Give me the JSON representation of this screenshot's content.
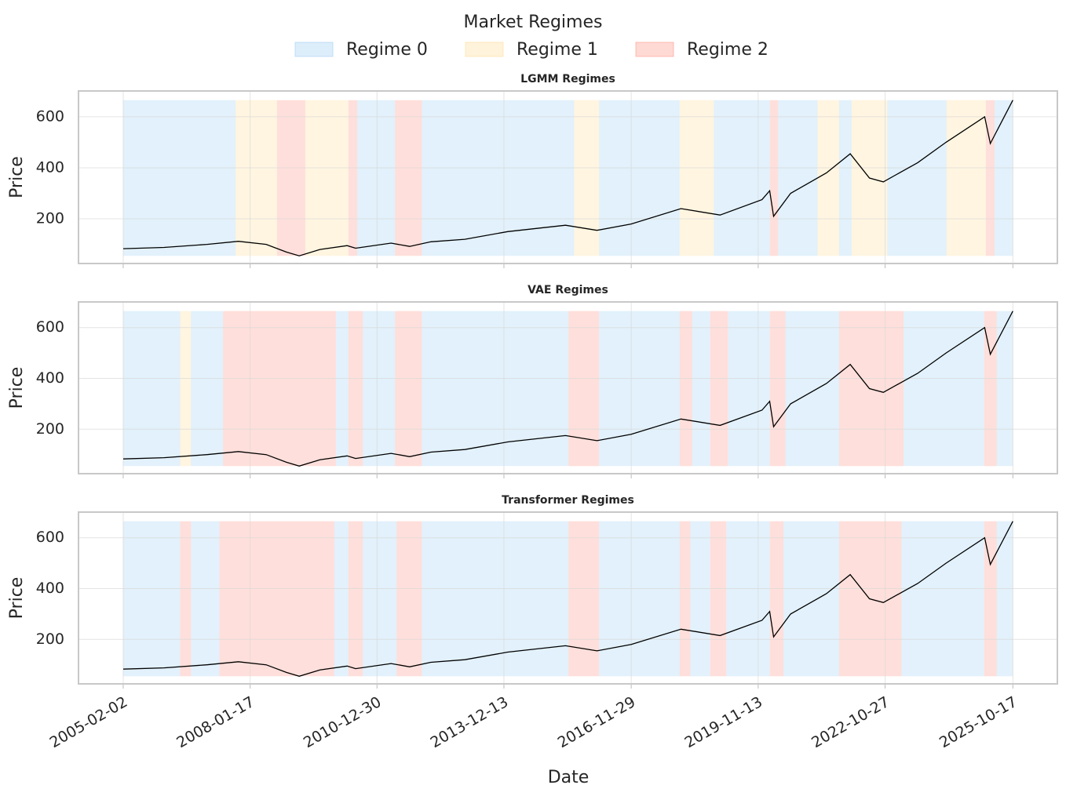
{
  "title": "Market Regimes",
  "legend": [
    {
      "name": "Regime 0",
      "color": "#9fcff3"
    },
    {
      "name": "Regime 1",
      "color": "#ffde99"
    },
    {
      "name": "Regime 2",
      "color": "#ff9688"
    }
  ],
  "x_axis": {
    "label": "Date",
    "xlim": [
      "2004-01-19",
      "2026-10-30"
    ],
    "xticks": [
      "2005-02-02",
      "2008-01-17",
      "2010-12-30",
      "2013-12-13",
      "2016-11-29",
      "2019-11-13",
      "2022-10-27",
      "2025-10-17"
    ]
  },
  "price": {
    "x": [
      "2005-02-02",
      "2006-01-15",
      "2007-01-15",
      "2007-10-09",
      "2008-06-01",
      "2008-11-20",
      "2009-03-09",
      "2009-09-01",
      "2010-04-20",
      "2010-07-01",
      "2011-04-29",
      "2011-10-03",
      "2012-04-01",
      "2013-01-15",
      "2014-01-15",
      "2015-05-20",
      "2016-02-11",
      "2016-11-29",
      "2018-01-26",
      "2018-12-24",
      "2019-12-15",
      "2020-02-19",
      "2020-03-23",
      "2020-08-15",
      "2021-06-15",
      "2022-01-03",
      "2022-06-16",
      "2022-10-12",
      "2023-07-31",
      "2024-03-28",
      "2025-02-19",
      "2025-04-08",
      "2025-10-17"
    ],
    "values": [
      83,
      88,
      100,
      112,
      100,
      70,
      55,
      80,
      95,
      85,
      105,
      92,
      110,
      120,
      150,
      175,
      155,
      180,
      240,
      215,
      275,
      310,
      210,
      300,
      380,
      455,
      360,
      345,
      420,
      500,
      600,
      495,
      665
    ]
  },
  "chart_data": [
    {
      "type": "line",
      "title": "LGMM Regimes",
      "y_label": "Price",
      "ylim": [
        25,
        701
      ],
      "yticks": [
        200,
        400,
        600
      ],
      "grid": true,
      "regime_spans": [
        {
          "start": "2005-02-02",
          "end": "2007-09-15",
          "regime": 0
        },
        {
          "start": "2007-09-15",
          "end": "2008-09-01",
          "regime": 1
        },
        {
          "start": "2008-09-01",
          "end": "2009-05-01",
          "regime": 2
        },
        {
          "start": "2009-05-01",
          "end": "2010-05-01",
          "regime": 1
        },
        {
          "start": "2010-05-01",
          "end": "2010-07-15",
          "regime": 2
        },
        {
          "start": "2010-07-15",
          "end": "2011-06-01",
          "regime": 0
        },
        {
          "start": "2011-06-01",
          "end": "2012-01-15",
          "regime": 2
        },
        {
          "start": "2012-01-15",
          "end": "2015-08-01",
          "regime": 0
        },
        {
          "start": "2015-08-01",
          "end": "2016-03-01",
          "regime": 1
        },
        {
          "start": "2016-03-01",
          "end": "2018-01-15",
          "regime": 0
        },
        {
          "start": "2018-01-15",
          "end": "2018-11-01",
          "regime": 1
        },
        {
          "start": "2018-11-01",
          "end": "2020-02-20",
          "regime": 0
        },
        {
          "start": "2020-02-20",
          "end": "2020-05-01",
          "regime": 2
        },
        {
          "start": "2020-05-01",
          "end": "2021-04-01",
          "regime": 0
        },
        {
          "start": "2021-04-01",
          "end": "2021-10-01",
          "regime": 1
        },
        {
          "start": "2021-10-01",
          "end": "2022-01-15",
          "regime": 0
        },
        {
          "start": "2022-01-15",
          "end": "2022-11-15",
          "regime": 1
        },
        {
          "start": "2022-11-15",
          "end": "2024-04-01",
          "regime": 0
        },
        {
          "start": "2024-04-01",
          "end": "2025-03-01",
          "regime": 1
        },
        {
          "start": "2025-03-01",
          "end": "2025-05-15",
          "regime": 2
        },
        {
          "start": "2025-05-15",
          "end": "2025-10-17",
          "regime": 0
        }
      ]
    },
    {
      "type": "line",
      "title": "VAE Regimes",
      "y_label": "Price",
      "ylim": [
        25,
        701
      ],
      "yticks": [
        200,
        400,
        600
      ],
      "grid": true,
      "regime_spans": [
        {
          "start": "2005-02-02",
          "end": "2006-06-01",
          "regime": 0
        },
        {
          "start": "2006-06-01",
          "end": "2006-09-01",
          "regime": 1
        },
        {
          "start": "2006-09-01",
          "end": "2007-06-01",
          "regime": 0
        },
        {
          "start": "2007-06-01",
          "end": "2010-01-15",
          "regime": 2
        },
        {
          "start": "2010-01-15",
          "end": "2010-05-01",
          "regime": 0
        },
        {
          "start": "2010-05-01",
          "end": "2010-09-01",
          "regime": 2
        },
        {
          "start": "2010-09-01",
          "end": "2011-06-01",
          "regime": 0
        },
        {
          "start": "2011-06-01",
          "end": "2012-01-15",
          "regime": 2
        },
        {
          "start": "2012-01-15",
          "end": "2015-06-15",
          "regime": 0
        },
        {
          "start": "2015-06-15",
          "end": "2016-03-01",
          "regime": 2
        },
        {
          "start": "2016-03-01",
          "end": "2018-01-15",
          "regime": 0
        },
        {
          "start": "2018-01-15",
          "end": "2018-05-01",
          "regime": 2
        },
        {
          "start": "2018-05-01",
          "end": "2018-10-01",
          "regime": 0
        },
        {
          "start": "2018-10-01",
          "end": "2019-03-01",
          "regime": 2
        },
        {
          "start": "2019-03-01",
          "end": "2020-02-20",
          "regime": 0
        },
        {
          "start": "2020-02-20",
          "end": "2020-07-01",
          "regime": 2
        },
        {
          "start": "2020-07-01",
          "end": "2021-10-01",
          "regime": 0
        },
        {
          "start": "2021-10-01",
          "end": "2023-04-01",
          "regime": 2
        },
        {
          "start": "2023-04-01",
          "end": "2025-02-15",
          "regime": 0
        },
        {
          "start": "2025-02-15",
          "end": "2025-06-01",
          "regime": 2
        },
        {
          "start": "2025-06-01",
          "end": "2025-10-17",
          "regime": 0
        }
      ]
    },
    {
      "type": "line",
      "title": "Transformer Regimes",
      "y_label": "Price",
      "ylim": [
        25,
        701
      ],
      "yticks": [
        200,
        400,
        600
      ],
      "grid": true,
      "regime_spans": [
        {
          "start": "2005-02-02",
          "end": "2006-06-01",
          "regime": 0
        },
        {
          "start": "2006-06-01",
          "end": "2006-09-01",
          "regime": 2
        },
        {
          "start": "2006-09-01",
          "end": "2007-05-01",
          "regime": 0
        },
        {
          "start": "2007-05-01",
          "end": "2010-01-01",
          "regime": 2
        },
        {
          "start": "2010-01-01",
          "end": "2010-05-01",
          "regime": 0
        },
        {
          "start": "2010-05-01",
          "end": "2010-09-01",
          "regime": 2
        },
        {
          "start": "2010-09-01",
          "end": "2011-06-15",
          "regime": 0
        },
        {
          "start": "2011-06-15",
          "end": "2012-01-15",
          "regime": 2
        },
        {
          "start": "2012-01-15",
          "end": "2015-06-15",
          "regime": 0
        },
        {
          "start": "2015-06-15",
          "end": "2016-03-01",
          "regime": 2
        },
        {
          "start": "2016-03-01",
          "end": "2018-01-15",
          "regime": 0
        },
        {
          "start": "2018-01-15",
          "end": "2018-04-15",
          "regime": 2
        },
        {
          "start": "2018-04-15",
          "end": "2018-10-01",
          "regime": 0
        },
        {
          "start": "2018-10-01",
          "end": "2019-02-15",
          "regime": 2
        },
        {
          "start": "2019-02-15",
          "end": "2020-02-20",
          "regime": 0
        },
        {
          "start": "2020-02-20",
          "end": "2020-06-15",
          "regime": 2
        },
        {
          "start": "2020-06-15",
          "end": "2021-10-01",
          "regime": 0
        },
        {
          "start": "2021-10-01",
          "end": "2023-03-15",
          "regime": 2
        },
        {
          "start": "2023-03-15",
          "end": "2025-02-15",
          "regime": 0
        },
        {
          "start": "2025-02-15",
          "end": "2025-06-01",
          "regime": 2
        },
        {
          "start": "2025-06-01",
          "end": "2025-10-17",
          "regime": 0
        }
      ]
    }
  ]
}
